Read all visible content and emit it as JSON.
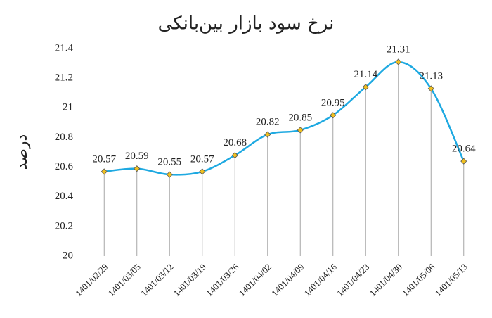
{
  "chart_data": {
    "type": "line",
    "title": "نرخ سود بازار بین‌بانکی",
    "y_label": "درصد",
    "categories": [
      "1401/02/29",
      "1401/03/05",
      "1401/03/12",
      "1401/03/19",
      "1401/03/26",
      "1401/04/02",
      "1401/04/09",
      "1401/04/16",
      "1401/04/23",
      "1401/04/30",
      "1401/05/06",
      "1401/05/13"
    ],
    "values": [
      20.57,
      20.59,
      20.55,
      20.57,
      20.68,
      20.82,
      20.85,
      20.95,
      21.14,
      21.31,
      21.13,
      20.64
    ],
    "color": "#1ea9e1",
    "marker_color": "#f0c020",
    "smooth": true,
    "drop_lines": true,
    "data_labels": true,
    "ylim": [
      20,
      21.4
    ],
    "yticks": [
      20,
      20.2,
      20.4,
      20.6,
      20.8,
      21,
      21.2,
      21.4
    ]
  }
}
